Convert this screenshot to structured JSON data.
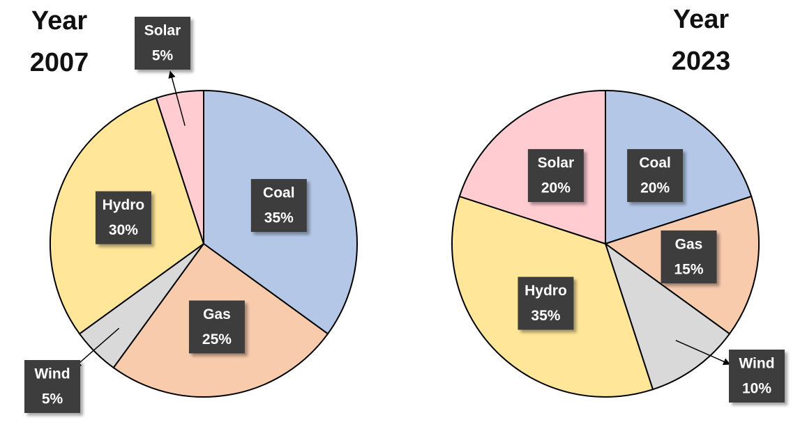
{
  "chart_data": [
    {
      "type": "pie",
      "title": "Year 2007",
      "categories": [
        "Coal",
        "Gas",
        "Wind",
        "Hydro",
        "Solar"
      ],
      "values": [
        35,
        25,
        5,
        30,
        5
      ],
      "value_labels": [
        "35%",
        "25%",
        "5%",
        "30%",
        "5%"
      ],
      "colors": [
        "#b4c7e7",
        "#f8cbad",
        "#d9d9d9",
        "#ffe699",
        "#ffccd2"
      ]
    },
    {
      "type": "pie",
      "title": "Year 2023",
      "categories": [
        "Coal",
        "Gas",
        "Wind",
        "Hydro",
        "Solar"
      ],
      "values": [
        20,
        15,
        10,
        35,
        20
      ],
      "value_labels": [
        "20%",
        "15%",
        "10%",
        "35%",
        "20%"
      ],
      "colors": [
        "#b4c7e7",
        "#f8cbad",
        "#d9d9d9",
        "#ffe699",
        "#ffccd2"
      ]
    }
  ]
}
